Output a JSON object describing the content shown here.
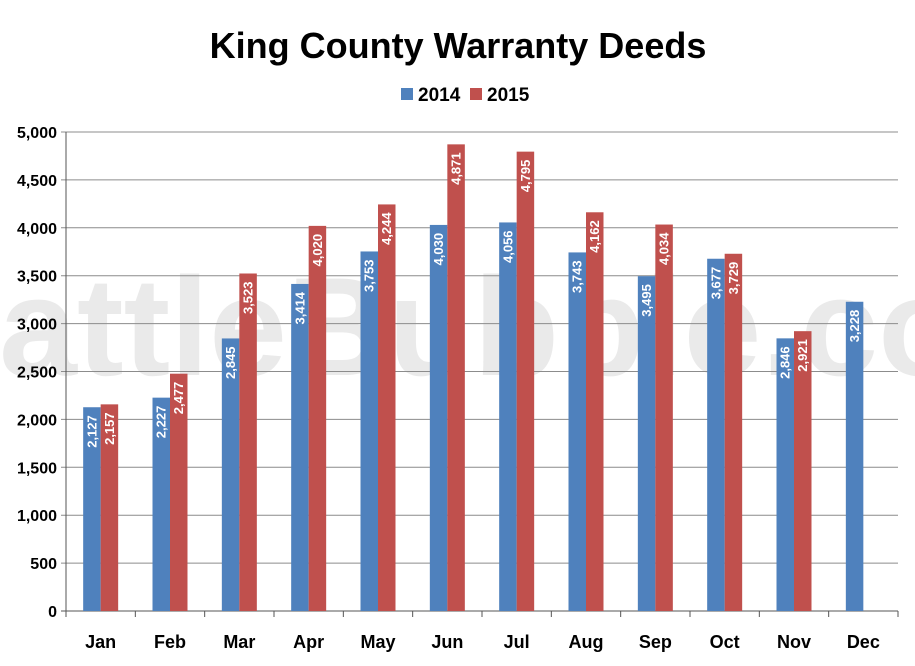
{
  "watermark": "SeattleBubble.com",
  "chart_data": {
    "type": "bar",
    "title": "King County Warranty Deeds",
    "categories": [
      "Jan",
      "Feb",
      "Mar",
      "Apr",
      "May",
      "Jun",
      "Jul",
      "Aug",
      "Sep",
      "Oct",
      "Nov",
      "Dec"
    ],
    "series": [
      {
        "name": "2014",
        "color": "#4f81bd",
        "values": [
          2127,
          2227,
          2845,
          3414,
          3753,
          4030,
          4056,
          3743,
          3495,
          3677,
          2846,
          3228
        ]
      },
      {
        "name": "2015",
        "color": "#c0504d",
        "values": [
          2157,
          2477,
          3523,
          4020,
          4244,
          4871,
          4795,
          4162,
          4034,
          3729,
          2921,
          null
        ]
      }
    ],
    "ylim": [
      0,
      5000
    ],
    "yticks": [
      "0",
      "500",
      "1,000",
      "1,500",
      "2,000",
      "2,500",
      "3,000",
      "3,500",
      "4,000",
      "4,500",
      "5,000"
    ],
    "grid": true,
    "legend_position": "top"
  }
}
